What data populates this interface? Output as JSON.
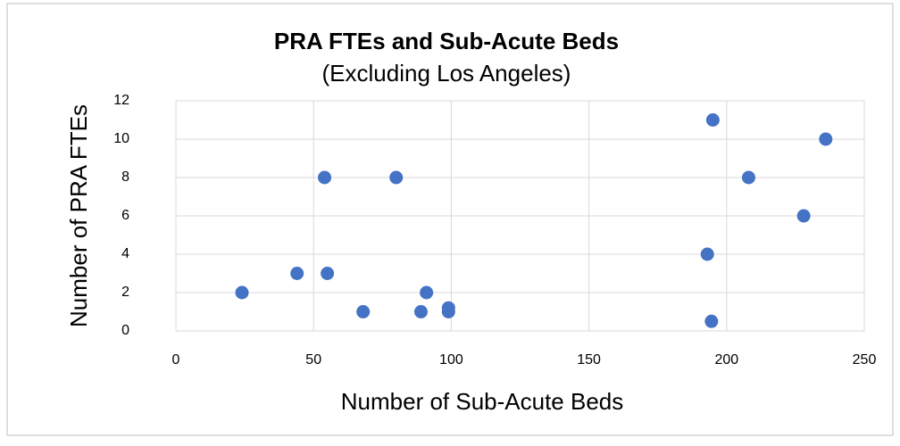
{
  "chart_data": {
    "type": "scatter",
    "title": "PRA FTEs and Sub-Acute Beds",
    "subtitle": "(Excluding Los Angeles)",
    "x_label": "Number of Sub-Acute Beds",
    "y_label": "Number of  PRA  FTEs",
    "series": [
      {
        "name": "PRA FTEs",
        "color": "#4472c4",
        "x": [
          24,
          44,
          55,
          54,
          80,
          68,
          89,
          91,
          99,
          99,
          193,
          194.5,
          195,
          208,
          228,
          236
        ],
        "values": [
          2,
          3,
          3,
          8,
          8,
          1,
          1,
          2,
          1.2,
          1,
          4,
          0.5,
          11,
          8,
          6,
          10
        ]
      }
    ],
    "xlim": [
      0,
      250
    ],
    "xticks": [
      0,
      50,
      100,
      150,
      200,
      250
    ],
    "ylim": [
      0,
      12
    ],
    "yticks": [
      0,
      2,
      4,
      6,
      8,
      10,
      12
    ],
    "grid": true
  }
}
